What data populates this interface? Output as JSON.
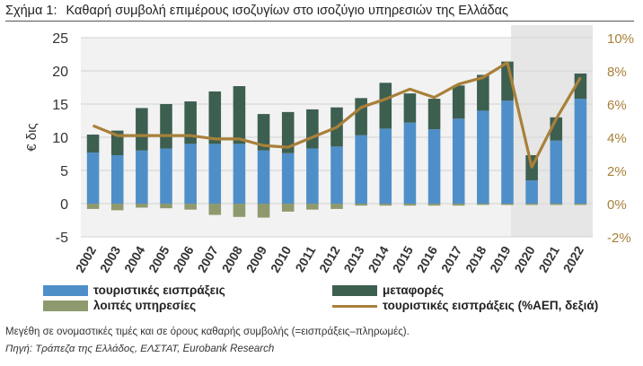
{
  "header": {
    "figure_label": "Σχήμα 1:",
    "title": "Καθαρή συμβολή επιμέρους ισοζυγίων στο ισοζύγιο υπηρεσιών της Ελλάδας"
  },
  "chart_data": {
    "type": "bar",
    "stacked": true,
    "title": "Καθαρή συμβολή επιμέρους ισοζυγίων στο ισοζύγιο υπηρεσιών της Ελλάδας",
    "ylabel": "€ δις",
    "ylim": [
      -5,
      25
    ],
    "yticks": [
      -5,
      0,
      5,
      10,
      15,
      20,
      25
    ],
    "y2lim": [
      -2,
      10
    ],
    "y2ticks": [
      "-2%",
      "0%",
      "2%",
      "4%",
      "6%",
      "8%",
      "10%"
    ],
    "categories": [
      "2002",
      "2003",
      "2004",
      "2005",
      "2006",
      "2007",
      "2008",
      "2009",
      "2010",
      "2011",
      "2012",
      "2013",
      "2014",
      "2015",
      "2016",
      "2017",
      "2018",
      "2019",
      "2020",
      "2021",
      "2022"
    ],
    "series": [
      {
        "name": "τουριστικές εισπράξεις",
        "type": "bar",
        "axis": "left",
        "color": "#4f8fc9",
        "values": [
          7.7,
          7.3,
          8.0,
          8.3,
          9.0,
          9.0,
          9.0,
          8.0,
          7.6,
          8.3,
          8.6,
          10.3,
          11.3,
          12.2,
          11.2,
          12.8,
          14.0,
          15.5,
          3.5,
          9.5,
          15.8
        ]
      },
      {
        "name": "μεταφορές",
        "type": "bar",
        "axis": "left",
        "color": "#3d5f50",
        "values": [
          2.7,
          3.7,
          6.4,
          6.7,
          6.4,
          7.9,
          8.7,
          5.5,
          6.2,
          5.9,
          5.9,
          5.6,
          6.9,
          4.4,
          4.6,
          5.0,
          5.4,
          5.9,
          3.8,
          3.5,
          3.8
        ]
      },
      {
        "name": "λοιπές υπηρεσίες",
        "type": "bar",
        "axis": "left",
        "color": "#8e9a6e",
        "values": [
          -0.8,
          -1.0,
          -0.6,
          -0.7,
          -0.9,
          -1.7,
          -2.0,
          -2.1,
          -1.2,
          -0.9,
          -0.8,
          -0.3,
          -0.3,
          -0.3,
          -0.3,
          -0.3,
          -0.2,
          -0.2,
          -0.2,
          -0.2,
          -0.2
        ]
      },
      {
        "name": "τουριστικές εισπράξεις (%ΑΕΠ, δεξιά)",
        "type": "line",
        "axis": "right",
        "color": "#a8803a",
        "values": [
          4.7,
          4.1,
          4.1,
          4.1,
          4.1,
          3.9,
          3.9,
          3.5,
          3.4,
          4.0,
          4.6,
          5.8,
          6.3,
          6.9,
          6.4,
          7.2,
          7.6,
          8.5,
          2.2,
          5.1,
          7.6
        ]
      }
    ],
    "shaded_period": [
      "2020",
      "2022"
    ],
    "grid": true
  },
  "legend": {
    "items": [
      {
        "label": "τουριστικές εισπράξεις",
        "kind": "box",
        "color": "#4f8fc9"
      },
      {
        "label": "μεταφορές",
        "kind": "box",
        "color": "#3d5f50"
      },
      {
        "label": "λοιπές υπηρεσίες",
        "kind": "box",
        "color": "#8e9a6e"
      },
      {
        "label": "τουριστικές εισπράξεις (%ΑΕΠ, δεξιά)",
        "kind": "line",
        "color": "#a8803a"
      }
    ]
  },
  "notes": {
    "line1": "Μεγέθη σε ονομαστικές τιμές και σε όρους καθαρής συμβολής (=εισπράξεις–πληρωμές).",
    "line2": "Πηγή: Τράπεζα της Ελλάδος, ΕΛΣΤΑΤ, Eurobank Research"
  }
}
